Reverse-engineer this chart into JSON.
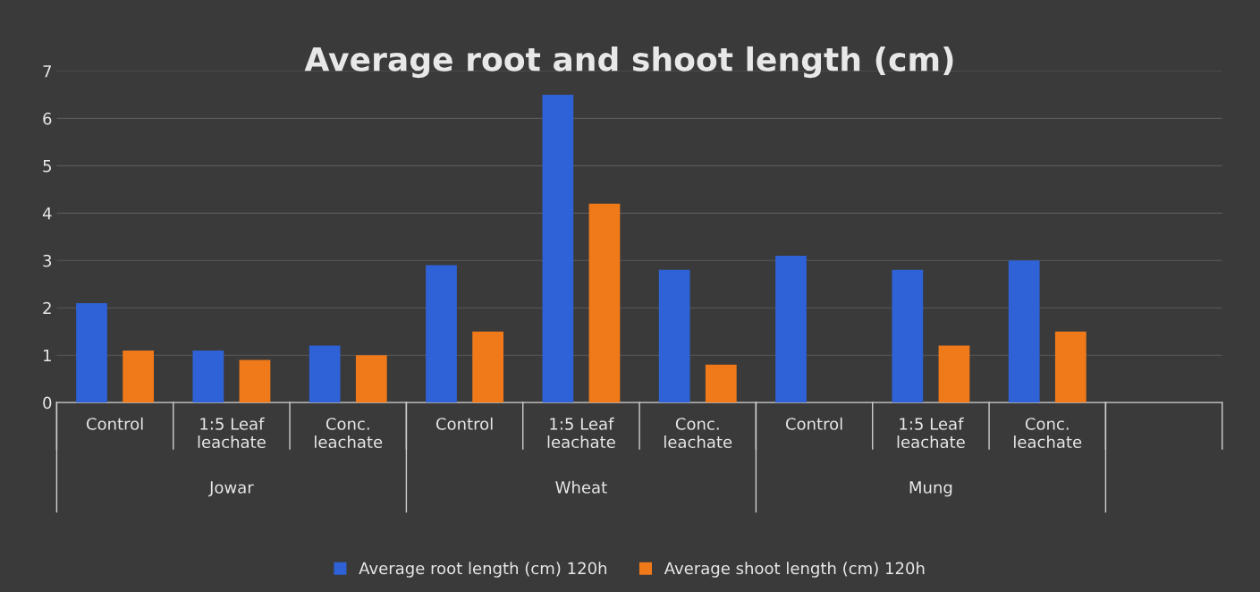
{
  "chart_data": {
    "type": "bar",
    "title": "Average root and shoot length (cm)",
    "categories": [
      "Control",
      "1:5 Leaf\nleachate",
      "Conc.\nleachate",
      "Control",
      "1:5 Leaf\nleachate",
      "Conc.\nleachate",
      "Control",
      "1:5 Leaf\nleachate",
      "Conc.\nleachate",
      null
    ],
    "series": [
      {
        "name": "Average root length (cm) 120h",
        "color": "#2e62d6",
        "values": [
          2.1,
          1.1,
          1.2,
          2.9,
          6.5,
          2.8,
          3.1,
          2.8,
          3.0,
          null
        ]
      },
      {
        "name": "Average shoot length (cm) 120h",
        "color": "#f07a1a",
        "values": [
          1.1,
          0.9,
          1.0,
          1.5,
          4.2,
          0.8,
          null,
          1.2,
          1.5,
          null
        ]
      }
    ],
    "annotations": [
      "Jowar",
      "Wheat",
      "Mung"
    ],
    "ylim": [
      0,
      7
    ],
    "yticks": [
      0,
      1,
      2,
      3,
      4,
      5,
      6,
      7
    ],
    "grid": "y",
    "legend": "bottom"
  }
}
